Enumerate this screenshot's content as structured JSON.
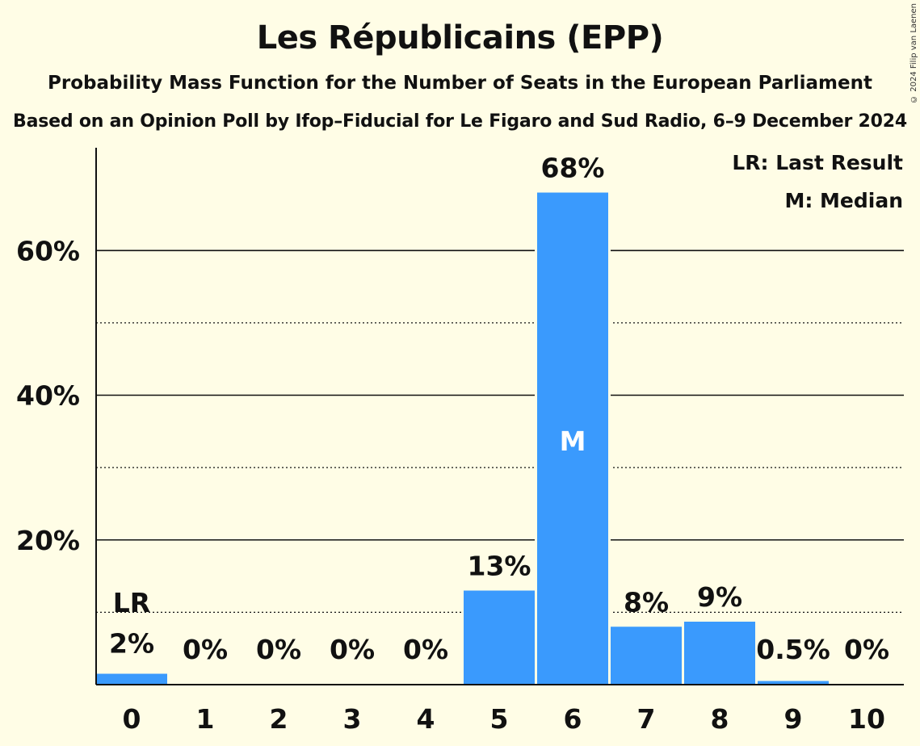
{
  "header": {
    "title": "Les Républicains (EPP)",
    "subtitle": "Probability Mass Function for the Number of Seats in the European Parliament",
    "subtitle2": "Based on an Opinion Poll by Ifop–Fiducial for Le Figaro and Sud Radio, 6–9 December 2024",
    "copyright": "© 2024 Filip van Laenen"
  },
  "chart_data": {
    "type": "bar",
    "title": "Les Républicains (EPP)",
    "categories": [
      "0",
      "1",
      "2",
      "3",
      "4",
      "5",
      "6",
      "7",
      "8",
      "9",
      "10"
    ],
    "values": [
      1.5,
      0,
      0,
      0,
      0,
      13,
      68,
      8,
      8.7,
      0.5,
      0
    ],
    "data_labels": [
      "2%",
      "0%",
      "0%",
      "0%",
      "0%",
      "13%",
      "68%",
      "8%",
      "9%",
      "0.5%",
      "0%"
    ],
    "ylim": [
      0,
      74
    ],
    "yticks_major": [
      20,
      40,
      60
    ],
    "ytick_labels": [
      "20%",
      "40%",
      "60%"
    ],
    "yticks_minor": [
      10,
      30,
      50
    ],
    "last_result_index": 0,
    "last_result_label": "LR",
    "median_index": 6,
    "median_label": "M",
    "legend": [
      "LR: Last Result",
      "M: Median"
    ],
    "legend_position": "top-right",
    "bar_color": "#3a9afd",
    "background": "#fffde6"
  }
}
